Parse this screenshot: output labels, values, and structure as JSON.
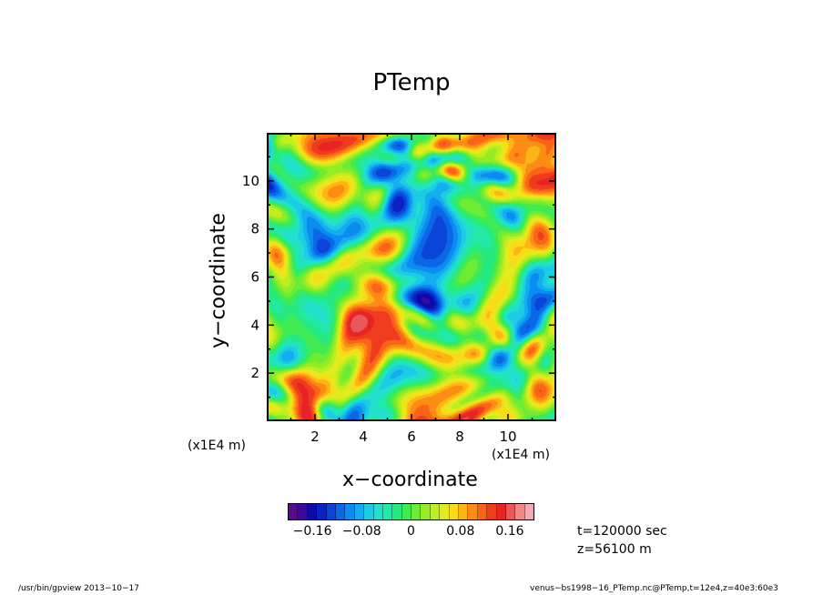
{
  "chart_data": {
    "type": "heatmap",
    "title": "PTemp",
    "xlabel": "x−coordinate",
    "ylabel": "y−coordinate",
    "x_unit": "(x1E4 m)",
    "y_unit": "(x1E4 m)",
    "x_ticks": [
      "2",
      "4",
      "6",
      "8",
      "10"
    ],
    "y_ticks": [
      "2",
      "4",
      "6",
      "8",
      "10"
    ],
    "x_tick_values": [
      2,
      4,
      6,
      8,
      10
    ],
    "y_tick_values": [
      2,
      4,
      6,
      8,
      10
    ],
    "xlim": [
      0,
      12
    ],
    "ylim": [
      0,
      12
    ],
    "colorbar": {
      "range": [
        -0.2,
        0.2
      ],
      "tick_labels": [
        "−0.16",
        "−0.08",
        "0",
        "0.08",
        "0.16"
      ],
      "tick_values": [
        -0.16,
        -0.08,
        0,
        0.08,
        0.16
      ],
      "colors": [
        "#5a0b8f",
        "#3a0a9a",
        "#0d0aa8",
        "#0a22c2",
        "#0a44d8",
        "#0a68e6",
        "#0a8cf0",
        "#14aef0",
        "#1ccce4",
        "#22e0cc",
        "#22e8a8",
        "#26ea80",
        "#40ea52",
        "#6cec34",
        "#96ec24",
        "#beee20",
        "#e2ec1c",
        "#f8dc18",
        "#fcb614",
        "#fc8c14",
        "#fa6418",
        "#f03c1e",
        "#e62424",
        "#e85858",
        "#f08888",
        "#f4a8b0"
      ]
    },
    "annotations": [
      "t=120000 sec",
      "z=56100 m"
    ]
  },
  "footer": {
    "left": "/usr/bin/gpview   2013−10−17",
    "right": "venus−bs1998−16_PTemp.nc@PTemp,t=12e4,z=40e3:60e3"
  }
}
